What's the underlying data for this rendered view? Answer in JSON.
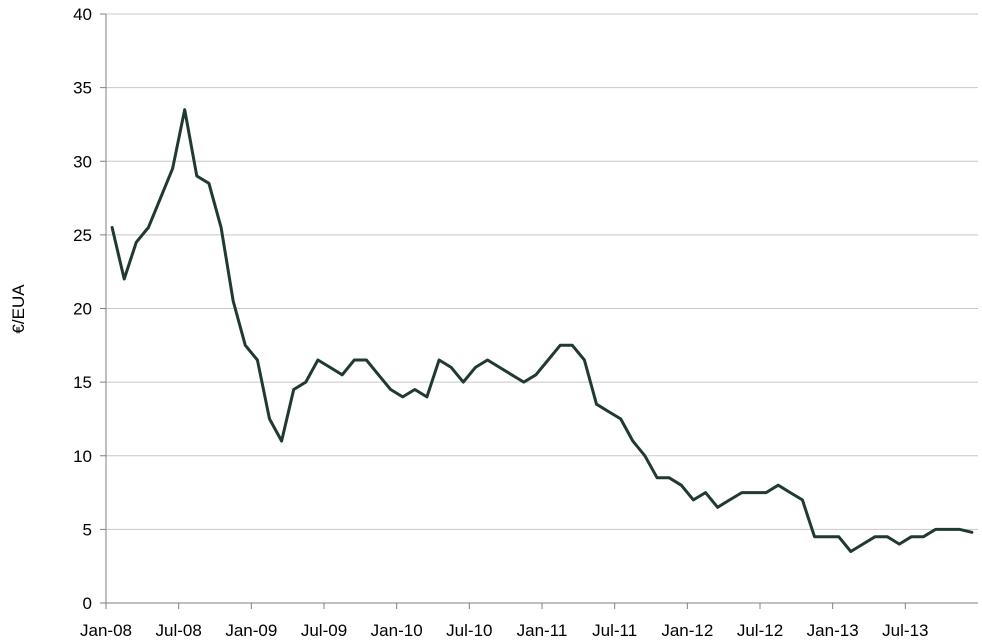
{
  "chart_data": {
    "type": "line",
    "title": "",
    "xlabel": "",
    "ylabel": "€/EUA",
    "ylim": [
      0,
      40
    ],
    "yticks": [
      0,
      5,
      10,
      15,
      20,
      25,
      30,
      35,
      40
    ],
    "xlim": [
      "2008-01",
      "2013-12"
    ],
    "xtick_labels": [
      "Jan-08",
      "Jul-08",
      "Jan-09",
      "Jul-09",
      "Jan-10",
      "Jul-10",
      "Jan-11",
      "Jul-11",
      "Jan-12",
      "Jul-12",
      "Jan-13",
      "Jul-13"
    ],
    "grid": "horizontal",
    "legend": "none",
    "colors": {
      "line": "#1f3a2e",
      "grid": "#c8c8c8",
      "axis": "#808080"
    },
    "series": [
      {
        "x": [
          "2008-01",
          "2008-02",
          "2008-03",
          "2008-04",
          "2008-05",
          "2008-06",
          "2008-07",
          "2008-08",
          "2008-09",
          "2008-10",
          "2008-11",
          "2008-12",
          "2009-01",
          "2009-02",
          "2009-03",
          "2009-04",
          "2009-05",
          "2009-06",
          "2009-07",
          "2009-08",
          "2009-09",
          "2009-10",
          "2009-11",
          "2009-12",
          "2010-01",
          "2010-02",
          "2010-03",
          "2010-04",
          "2010-05",
          "2010-06",
          "2010-07",
          "2010-08",
          "2010-09",
          "2010-10",
          "2010-11",
          "2010-12",
          "2011-01",
          "2011-02",
          "2011-03",
          "2011-04",
          "2011-05",
          "2011-06",
          "2011-07",
          "2011-08",
          "2011-09",
          "2011-10",
          "2011-11",
          "2011-12",
          "2012-01",
          "2012-02",
          "2012-03",
          "2012-04",
          "2012-05",
          "2012-06",
          "2012-07",
          "2012-08",
          "2012-09",
          "2012-10",
          "2012-11",
          "2012-12",
          "2013-01",
          "2013-02",
          "2013-03",
          "2013-04",
          "2013-05",
          "2013-06",
          "2013-07",
          "2013-08",
          "2013-09",
          "2013-10",
          "2013-11",
          "2013-12"
        ],
        "values": [
          25.5,
          22.0,
          24.5,
          25.5,
          27.5,
          29.5,
          33.5,
          29.0,
          28.5,
          25.5,
          20.5,
          17.5,
          16.5,
          12.5,
          11.0,
          14.5,
          15.0,
          16.5,
          16.0,
          15.5,
          16.5,
          16.5,
          15.5,
          14.5,
          14.0,
          14.5,
          14.0,
          16.5,
          16.0,
          15.0,
          16.0,
          16.5,
          16.0,
          15.5,
          15.0,
          15.5,
          16.5,
          17.5,
          17.5,
          16.5,
          13.5,
          13.0,
          12.5,
          11.0,
          10.0,
          8.5,
          8.5,
          8.0,
          7.0,
          7.5,
          6.5,
          7.0,
          7.5,
          7.5,
          7.5,
          8.0,
          7.5,
          7.0,
          4.5,
          4.5,
          4.5,
          3.5,
          4.0,
          4.5,
          4.5,
          4.0,
          4.5,
          4.5,
          5.0,
          5.0,
          5.0,
          4.8
        ]
      }
    ]
  }
}
